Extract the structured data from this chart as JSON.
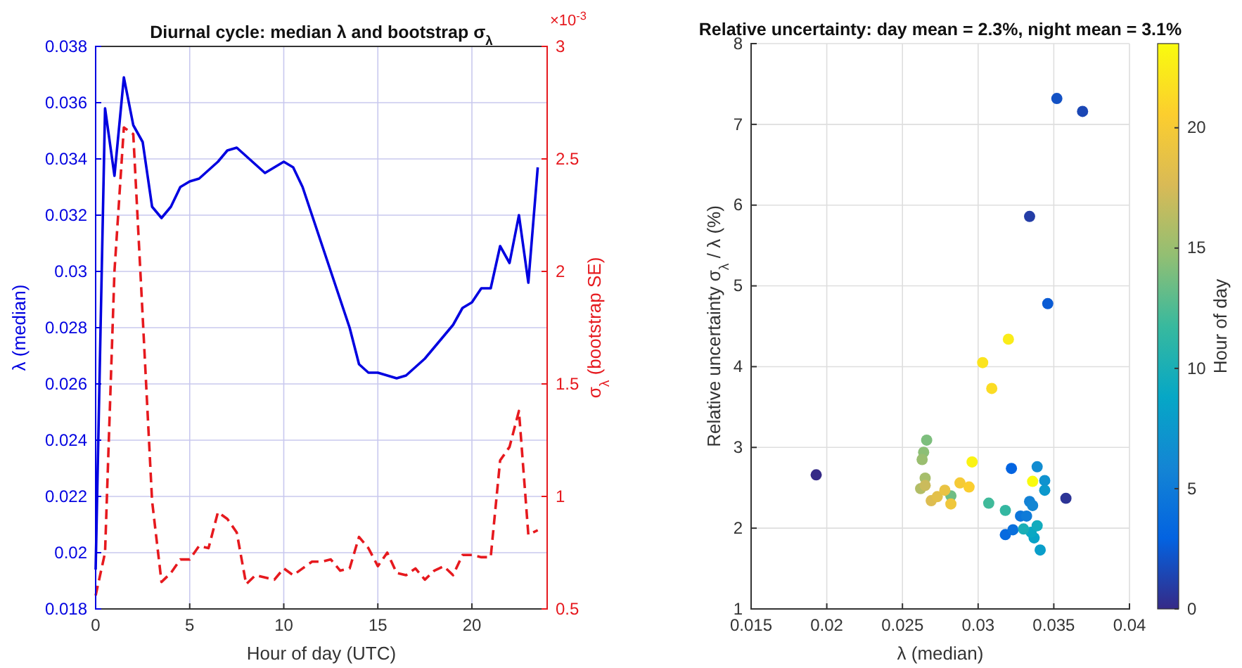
{
  "chart_data": [
    {
      "type": "line",
      "title": "Diurnal cycle: median λ and bootstrap σ$_{λ}$",
      "xlabel": "Hour of day (UTC)",
      "ylabel": "λ (median)",
      "y2label": "σ$_{λ}$ (bootstrap SE)",
      "annotations": [
        "×10$^{-3}$"
      ],
      "x": [
        0,
        0.5,
        1,
        1.5,
        2,
        2.5,
        3,
        3.5,
        4,
        4.5,
        5,
        5.5,
        6,
        6.5,
        7,
        7.5,
        8,
        8.5,
        9,
        9.5,
        10,
        10.5,
        11,
        11.5,
        12,
        12.5,
        13,
        13.5,
        14,
        14.5,
        15,
        15.5,
        16,
        16.5,
        17,
        17.5,
        18,
        18.5,
        19,
        19.5,
        20,
        20.5,
        21,
        21.5,
        22,
        22.5,
        23,
        23.5
      ],
      "series": [
        {
          "color": "#0000e0",
          "line_style": "solid",
          "values": [
            0.0194,
            0.0358,
            0.0334,
            0.0369,
            0.0352,
            0.0346,
            0.0323,
            0.0319,
            0.0323,
            0.033,
            0.0332,
            0.0333,
            0.0336,
            0.0339,
            0.0343,
            0.0344,
            0.0341,
            0.0338,
            0.0335,
            0.0337,
            0.0339,
            0.0337,
            0.033,
            0.032,
            0.031,
            0.03,
            0.029,
            0.028,
            0.0267,
            0.0264,
            0.0264,
            0.0263,
            0.0262,
            0.0263,
            0.0266,
            0.0269,
            0.0273,
            0.0277,
            0.0281,
            0.0287,
            0.0289,
            0.0294,
            0.0294,
            0.0309,
            0.0303,
            0.032,
            0.0296,
            0.0337
          ]
        },
        {
          "color": "#e6191e",
          "line_style": "dashed",
          "axis": "y2",
          "values": [
            0.56,
            0.75,
            2.0,
            2.64,
            2.61,
            1.8,
            0.98,
            0.62,
            0.66,
            0.72,
            0.72,
            0.78,
            0.77,
            0.93,
            0.9,
            0.84,
            0.61,
            0.65,
            0.64,
            0.63,
            0.68,
            0.65,
            0.68,
            0.71,
            0.71,
            0.72,
            0.67,
            0.68,
            0.82,
            0.77,
            0.69,
            0.75,
            0.66,
            0.65,
            0.68,
            0.63,
            0.67,
            0.69,
            0.65,
            0.74,
            0.74,
            0.73,
            0.73,
            1.16,
            1.22,
            1.38,
            0.83,
            0.85
          ]
        }
      ],
      "xlim": [
        0,
        24
      ],
      "xticks": [
        0,
        5,
        10,
        15,
        20
      ],
      "ylim": [
        0.018,
        0.038
      ],
      "yticks": [
        0.018,
        0.02,
        0.022,
        0.024,
        0.026,
        0.028,
        0.03,
        0.032,
        0.034,
        0.036,
        0.038
      ],
      "y2lim": [
        0.5,
        3
      ],
      "y2ticks": [
        0.5,
        1,
        1.5,
        2,
        2.5,
        3
      ],
      "grid": true,
      "marker": "none"
    },
    {
      "type": "scatter",
      "title": "Relative uncertainty: day mean = 2.3%, night mean = 3.1%",
      "xlabel": "λ (median)",
      "ylabel": "Relative uncertainty σ$_{λ}$ / λ (%)",
      "clabel": "Hour of day",
      "x": [
        0.0193,
        0.0358,
        0.0334,
        0.0369,
        0.0352,
        0.0346,
        0.0322,
        0.0318,
        0.0323,
        0.0328,
        0.0332,
        0.0334,
        0.0336,
        0.0339,
        0.0344,
        0.0344,
        0.0341,
        0.0337,
        0.0335,
        0.0339,
        0.033,
        0.0318,
        0.0307,
        0.0282,
        0.0266,
        0.0264,
        0.0263,
        0.0265,
        0.0262,
        0.0265,
        0.0269,
        0.0273,
        0.0278,
        0.0282,
        0.0288,
        0.0294,
        0.0309,
        0.0303,
        0.032,
        0.0296,
        0.0336
      ],
      "values": [
        2.66,
        2.37,
        5.86,
        7.16,
        7.32,
        4.78,
        2.74,
        1.92,
        1.98,
        2.15,
        2.15,
        2.33,
        2.28,
        2.76,
        2.59,
        2.47,
        1.73,
        1.88,
        1.95,
        2.03,
        1.99,
        2.22,
        2.31,
        2.4,
        3.09,
        2.94,
        2.85,
        2.62,
        2.49,
        2.53,
        2.34,
        2.39,
        2.47,
        2.3,
        2.56,
        2.51,
        3.73,
        4.05,
        4.34,
        2.82,
        2.58
      ],
      "cvalues": [
        0,
        0.5,
        1,
        1.5,
        2,
        2.5,
        3,
        3.5,
        4,
        4.5,
        5,
        5.5,
        6,
        6.5,
        7,
        7.5,
        8,
        8.5,
        9,
        9.5,
        10,
        11.5,
        12,
        13.5,
        14,
        14.5,
        15,
        15.5,
        16,
        17,
        18,
        18.5,
        19,
        19.5,
        20,
        20.5,
        21.5,
        22,
        22.5,
        23,
        23.5
      ],
      "clim": [
        0,
        23.5
      ],
      "cticks": [
        0,
        5,
        10,
        15,
        20
      ],
      "xlim": [
        0.015,
        0.04
      ],
      "xticks": [
        0.015,
        0.02,
        0.025,
        0.03,
        0.035,
        0.04
      ],
      "ylim": [
        1,
        8
      ],
      "yticks": [
        1,
        2,
        3,
        4,
        5,
        6,
        7,
        8
      ],
      "grid": true,
      "marker": "circle"
    }
  ]
}
